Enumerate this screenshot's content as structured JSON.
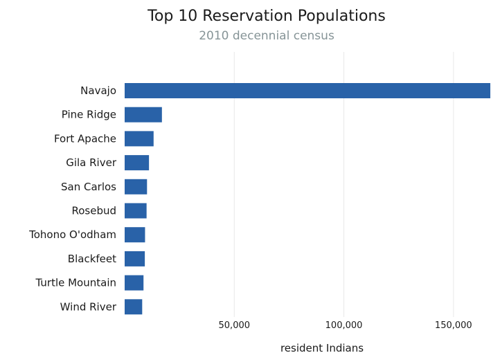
{
  "chart_data": {
    "type": "bar",
    "orientation": "horizontal",
    "title": "Top 10 Reservation Populations",
    "subtitle": "2010 decennial census",
    "xlabel": "resident Indians",
    "ylabel": "",
    "categories": [
      "Navajo",
      "Pine Ridge",
      "Fort Apache",
      "Gila River",
      "San Carlos",
      "Rosebud",
      "Tohono O'odham",
      "Blackfeet",
      "Turtle Mountain",
      "Wind River"
    ],
    "values": [
      166800,
      17000,
      13200,
      11100,
      10200,
      10000,
      9300,
      9200,
      8600,
      8000
    ],
    "xlim": [
      0,
      166800
    ],
    "x_ticks": [
      50000,
      100000,
      150000
    ],
    "x_tick_labels": [
      "50,000",
      "100,000",
      "150,000"
    ],
    "grid": true,
    "legend": "none",
    "bar_color": "#2962a8"
  }
}
